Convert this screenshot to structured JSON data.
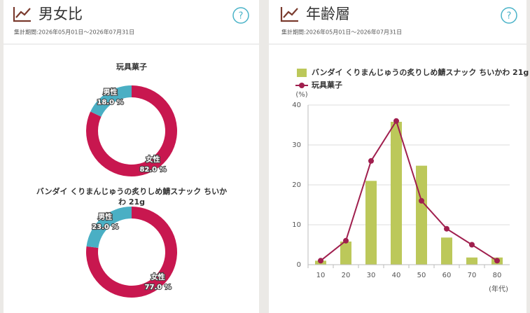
{
  "panels": [
    {
      "title": "男女比",
      "period": "集計期間:2026年05月01日～2026年07月31日",
      "help": "?"
    },
    {
      "title": "年齢層",
      "period": "集計期間:2026年05月01日～2026年07月31日",
      "help": "?"
    }
  ],
  "chart_data": [
    {
      "type": "donut",
      "title": "玩具菓子",
      "categories": [
        "女性",
        "男性"
      ],
      "values": [
        82,
        18
      ],
      "value_labels": [
        "82.0 %",
        "18.0 %"
      ],
      "colors": [
        "#c8174f",
        "#4aafc4"
      ]
    },
    {
      "type": "donut",
      "title": "バンダイ くりまんじゅうの炙りしめ鯖スナック ちいかわ 21g",
      "categories": [
        "女性",
        "男性"
      ],
      "values": [
        77,
        23
      ],
      "value_labels": [
        "77.0 %",
        "23.0 %"
      ],
      "colors": [
        "#c8174f",
        "#4aafc4"
      ]
    },
    {
      "type": "combo",
      "categories": [
        "10",
        "20",
        "30",
        "40",
        "50",
        "60",
        "70",
        "80"
      ],
      "series": [
        {
          "name": "バンダイ くりまんじゅうの炙りしめ鯖スナック ちいかわ 21g",
          "type": "bar",
          "color": "#bcc85a",
          "values": [
            1,
            5.8,
            21,
            35.8,
            24.8,
            6.8,
            1.8,
            1.8
          ]
        },
        {
          "name": "玩具菓子",
          "type": "line",
          "color": "#a01f4e",
          "values": [
            1,
            6,
            26,
            36,
            16,
            9,
            5,
            1
          ]
        }
      ],
      "ylim": [
        0,
        40
      ],
      "yticks": [
        0,
        10,
        20,
        30,
        40
      ],
      "y_unit": "(%)",
      "x_label": "(年代)",
      "grid": true
    }
  ]
}
